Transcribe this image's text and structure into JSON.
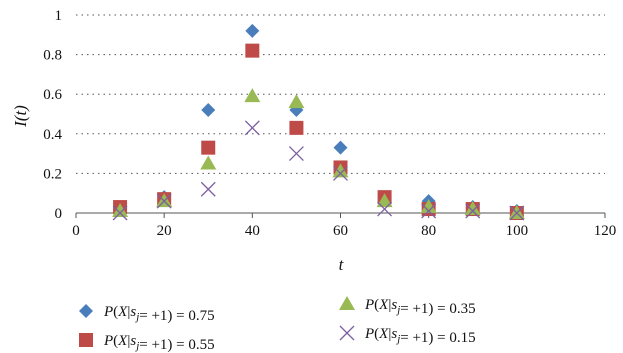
{
  "chart_data": {
    "type": "scatter",
    "title": "",
    "xlabel": "t",
    "ylabel": "I(t)",
    "xlim": [
      0,
      120
    ],
    "ylim": [
      0,
      1
    ],
    "xticks": [
      "0",
      "20",
      "40",
      "60",
      "80",
      "100",
      "120"
    ],
    "yticks": [
      "0",
      "0.2",
      "0.4",
      "0.6",
      "0.8",
      "1"
    ],
    "grid": "horizontal dotted",
    "legend_placement": "bottom",
    "series": [
      {
        "name": "P(X|sj= +1) = 0.75",
        "marker": "diamond",
        "color": "#4a7ebb",
        "x": [
          10,
          20,
          30,
          40,
          50,
          60,
          70,
          80,
          90,
          100
        ],
        "y": [
          0.02,
          0.08,
          0.52,
          0.92,
          0.52,
          0.33,
          0.08,
          0.06,
          0.03,
          0.01
        ]
      },
      {
        "name": "P(X|sj= +1) = 0.55",
        "marker": "square",
        "color": "#be4b48",
        "x": [
          10,
          20,
          30,
          40,
          50,
          60,
          70,
          80,
          90,
          100
        ],
        "y": [
          0.03,
          0.07,
          0.33,
          0.82,
          0.43,
          0.23,
          0.08,
          0.02,
          0.02,
          0.0
        ]
      },
      {
        "name": "P(X|sj= +1) = 0.35",
        "marker": "triangle",
        "color": "#98b954",
        "x": [
          10,
          20,
          30,
          40,
          50,
          60,
          70,
          80,
          90,
          100
        ],
        "y": [
          0.01,
          0.06,
          0.25,
          0.59,
          0.56,
          0.21,
          0.06,
          0.03,
          0.02,
          0.0
        ]
      },
      {
        "name": "P(X|sj= +1) = 0.15",
        "marker": "x",
        "color": "#7d60a0",
        "x": [
          10,
          20,
          30,
          40,
          50,
          60,
          70,
          80,
          90,
          100
        ],
        "y": [
          0.0,
          0.06,
          0.12,
          0.43,
          0.3,
          0.2,
          0.02,
          0.01,
          0.01,
          0.0
        ]
      }
    ]
  }
}
